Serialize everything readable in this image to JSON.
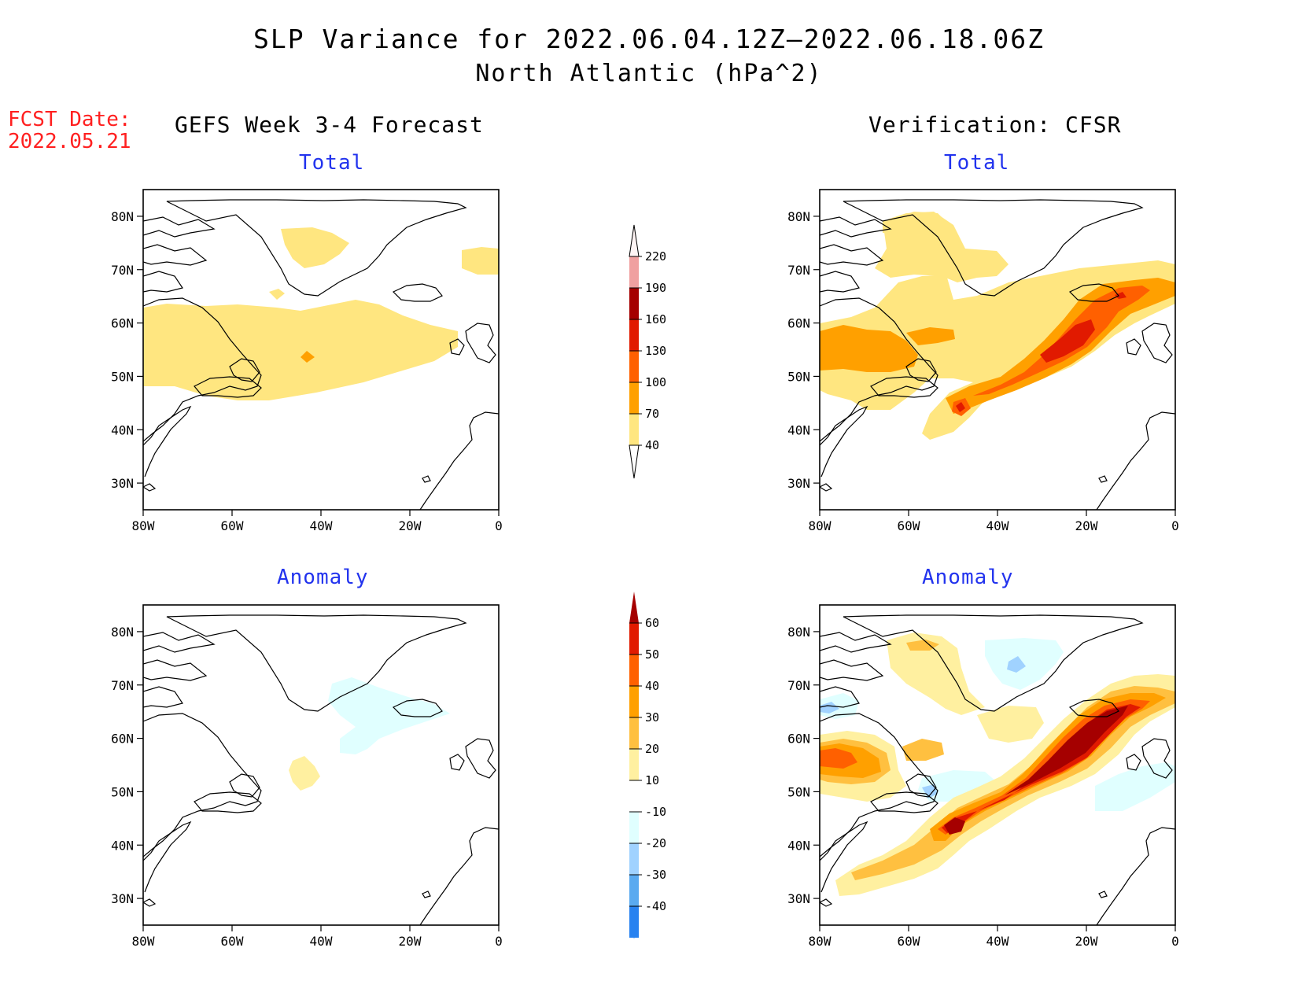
{
  "title": {
    "line1": "SLP Variance for 2022.06.04.12Z–2022.06.18.06Z",
    "line2": "North Atlantic (hPa^2)"
  },
  "forecast_date": {
    "label": "FCST Date:",
    "value": "2022.05.21"
  },
  "columns": {
    "left": "GEFS Week 3-4 Forecast",
    "right": "Verification: CFSR"
  },
  "panel_titles": {
    "total": "Total",
    "anomaly": "Anomaly"
  },
  "axes": {
    "lat_ticks": [
      "80N",
      "70N",
      "60N",
      "50N",
      "40N",
      "30N"
    ],
    "lon_ticks": [
      "80W",
      "60W",
      "40W",
      "20W",
      "0"
    ],
    "lon_range": [
      -80,
      0
    ],
    "lat_range": [
      25,
      85
    ]
  },
  "colorbars": {
    "total": {
      "levels": [
        "40",
        "70",
        "100",
        "130",
        "160",
        "190",
        "220"
      ],
      "colors": [
        "#ffe680",
        "#ffa000",
        "#ff6000",
        "#e11a00",
        "#a50000",
        "#f0a0a0",
        "#fce0e0"
      ]
    },
    "anomaly": {
      "levels": [
        "60",
        "50",
        "40",
        "30",
        "20",
        "10",
        "-10",
        "-20",
        "-30",
        "-40"
      ],
      "colors": [
        "#a50000",
        "#e11a00",
        "#ff6000",
        "#ffa000",
        "#ffc040",
        "#fff0a0",
        "#ffffff",
        "#e0ffff",
        "#a0d2ff",
        "#5aaaf0",
        "#2882f0",
        "#1464d2"
      ]
    }
  },
  "map_data": {
    "variable": "SLP variance",
    "units": "hPa^2",
    "region": "North Atlantic",
    "panels": [
      {
        "name": "GEFS Week 3-4 Forecast - Total",
        "summary": "40-70 band from Labrador to 10W near 45-62N; isolated 70-100 near 53N 43W"
      },
      {
        "name": "Verification: CFSR - Total",
        "summary": "SW-NE storm track 40-160 from 40N 50W to 65N 5W, peak 130-160 near 55N 23W"
      },
      {
        "name": "GEFS Week 3-4 Forecast - Anomaly",
        "summary": "weak 10-20 near 53N 43W; -10 to -20 near Iceland"
      },
      {
        "name": "Verification: CFSR - Anomaly",
        "summary": "strong positive 50-60+ along track 42N 48W to 65N 10W; weak negatives near 75N 30W and 45N 55W"
      }
    ]
  }
}
